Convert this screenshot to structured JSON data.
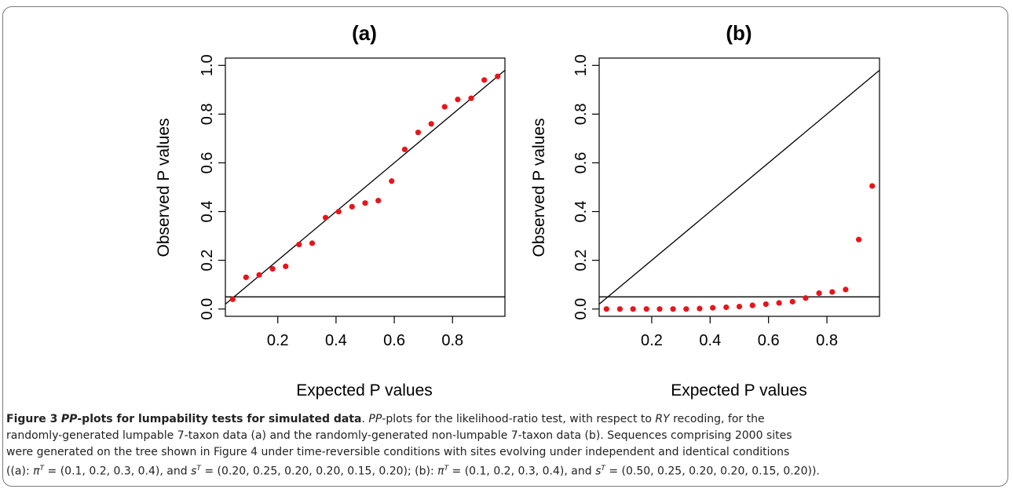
{
  "chart_data": [
    {
      "type": "scatter",
      "title": "(a)",
      "xlabel": "Expected P values",
      "ylabel": "Observed P values",
      "xlim": [
        0.02,
        0.98
      ],
      "ylim": [
        -0.03,
        1.03
      ],
      "xticks": [
        "0.2",
        "0.4",
        "0.6",
        "0.8"
      ],
      "xtick_values": [
        0.2,
        0.4,
        0.6,
        0.8
      ],
      "yticks": [
        "0.0",
        "0.2",
        "0.4",
        "0.6",
        "0.8",
        "1.0"
      ],
      "ytick_values": [
        0.0,
        0.2,
        0.4,
        0.6,
        0.8,
        1.0
      ],
      "point_color": "#e8141b",
      "reference_lines": [
        {
          "kind": "diagonal",
          "from": [
            0,
            0
          ],
          "to": [
            1,
            1
          ]
        },
        {
          "kind": "horizontal",
          "y": 0.05
        }
      ],
      "x": [
        0.045,
        0.091,
        0.136,
        0.182,
        0.227,
        0.273,
        0.318,
        0.364,
        0.409,
        0.455,
        0.5,
        0.545,
        0.591,
        0.636,
        0.682,
        0.727,
        0.773,
        0.818,
        0.864,
        0.909,
        0.955
      ],
      "y": [
        0.04,
        0.13,
        0.14,
        0.165,
        0.175,
        0.265,
        0.27,
        0.375,
        0.4,
        0.42,
        0.435,
        0.445,
        0.525,
        0.655,
        0.725,
        0.76,
        0.83,
        0.86,
        0.865,
        0.94,
        0.955
      ]
    },
    {
      "type": "scatter",
      "title": "(b)",
      "xlabel": "Expected P values",
      "ylabel": "Observed P values",
      "xlim": [
        0.02,
        0.98
      ],
      "ylim": [
        -0.03,
        1.03
      ],
      "xticks": [
        "0.2",
        "0.4",
        "0.6",
        "0.8"
      ],
      "xtick_values": [
        0.2,
        0.4,
        0.6,
        0.8
      ],
      "yticks": [
        "0.0",
        "0.2",
        "0.4",
        "0.6",
        "0.8",
        "1.0"
      ],
      "ytick_values": [
        0.0,
        0.2,
        0.4,
        0.6,
        0.8,
        1.0
      ],
      "point_color": "#e8141b",
      "reference_lines": [
        {
          "kind": "diagonal",
          "from": [
            0,
            0
          ],
          "to": [
            1,
            1
          ]
        },
        {
          "kind": "horizontal",
          "y": 0.05
        }
      ],
      "x": [
        0.045,
        0.091,
        0.136,
        0.182,
        0.227,
        0.273,
        0.318,
        0.364,
        0.409,
        0.455,
        0.5,
        0.545,
        0.591,
        0.636,
        0.682,
        0.727,
        0.773,
        0.818,
        0.864,
        0.909,
        0.955
      ],
      "y": [
        0.0,
        0.0,
        0.0,
        0.0,
        0.0,
        0.0,
        0.0,
        0.002,
        0.005,
        0.007,
        0.01,
        0.015,
        0.02,
        0.025,
        0.03,
        0.045,
        0.065,
        0.07,
        0.08,
        0.285,
        0.505
      ]
    }
  ],
  "caption": {
    "figure_number": "Figure 3",
    "title_em": "PP",
    "title_rest": "-plots for lumpability tests for simulated data",
    "sep": ". ",
    "line1_em1": "PP",
    "line1_a": "-plots for the likelihood-ratio test, with respect to ",
    "line1_em2": "RY",
    "line1_b": " recoding, for the",
    "line2": "randomly-generated lumpable 7-taxon data (a) and the randomly-generated non-lumpable 7-taxon data (b). Sequences comprising 2000 sites",
    "line3": "were generated on the tree shown in Figure 4 under time-reversible conditions with sites evolving under independent and identical conditions",
    "line4_p1": "((a): ",
    "pi": "π",
    "sup_t": "T",
    "eq_pi_a": " = (0.1, 0.2, 0.3, 0.4), and ",
    "s": "s",
    "eq_s_a": " = (0.20, 0.25, 0.20, 0.20, 0.15, 0.20); (b): ",
    "eq_pi_b": " = (0.1, 0.2, 0.3, 0.4), and ",
    "eq_s_b": " = (0.50, 0.25, 0.20, 0.20, 0.15, 0.20))."
  }
}
